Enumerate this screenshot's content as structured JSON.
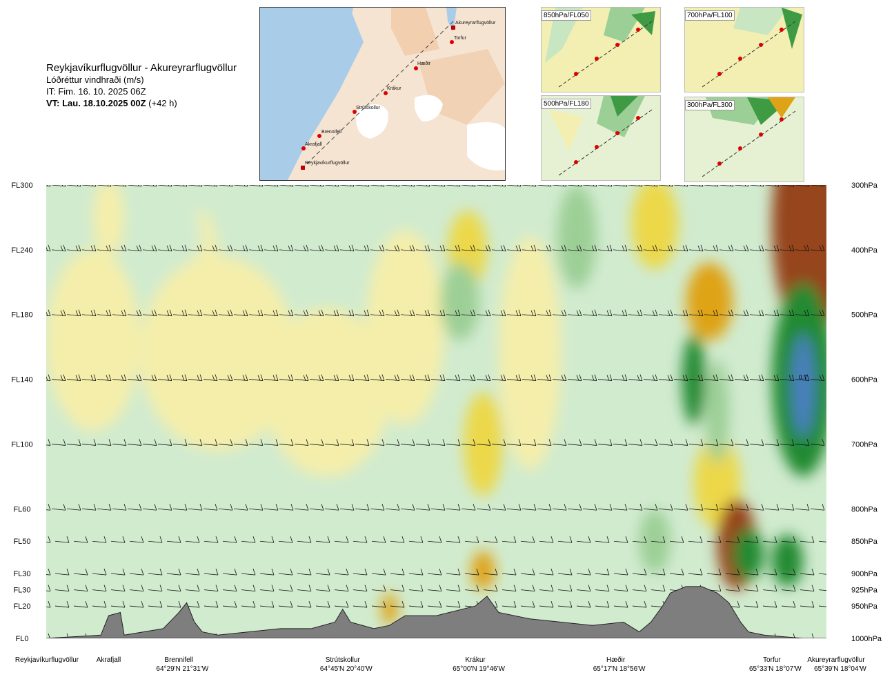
{
  "header": {
    "route": "Reykjavíkurflugvöllur - Akureyrarflugvöllur",
    "variable": "Lóðréttur vindhraði (m/s)",
    "issue_time": "IT: Fim. 16. 10. 2025 06Z",
    "valid_time": "VT: Lau. 18.10.2025 00Z",
    "lead_time": "(+42 h)"
  },
  "route_map": {
    "waypoints": [
      "Akureyrarflugvöllur",
      "Torfur",
      "Hæðir",
      "Krákur",
      "Strútskollur",
      "Brennifell",
      "Akrafjall",
      "Reykjavíkurflugvöllur"
    ]
  },
  "thumbnails": [
    {
      "label": "850hPa/FL050"
    },
    {
      "label": "700hPa/FL100"
    },
    {
      "label": "500hPa/FL180"
    },
    {
      "label": "300hPa/FL300"
    }
  ],
  "colors": {
    "downdraft_weak": "#f5eeaa",
    "downdraft_mod": "#ecd84a",
    "downdraft_strong": "#dfa318",
    "downdraft_very_strong": "#c96a10",
    "downdraft_extreme": "#96441a",
    "updraft_weak": "#d1ebcf",
    "updraft_mod": "#9ccf96",
    "updraft_strong": "#58b058",
    "updraft_very_strong": "#218a31",
    "updraft_extreme": "#4a7fbf",
    "terrain": "#7e7e7e"
  },
  "chart_data": {
    "type": "heatmap",
    "title": "Lóðréttur vindhraði (m/s)",
    "x_waypoints": [
      {
        "name": "Reykjavíkurflugvöllur",
        "coord": "",
        "pos": 0.0
      },
      {
        "name": "Akrafjall",
        "coord": "",
        "pos": 0.08
      },
      {
        "name": "Brennifell",
        "coord": "64°29'N 21°31'W",
        "pos": 0.17
      },
      {
        "name": "Strútskollur",
        "coord": "64°45'N 20°40'W",
        "pos": 0.38
      },
      {
        "name": "Krákur",
        "coord": "65°00'N 19°46'W",
        "pos": 0.55
      },
      {
        "name": "Hæðir",
        "coord": "65°17'N 18°56'W",
        "pos": 0.73
      },
      {
        "name": "Torfur",
        "coord": "65°33'N 18°07'W",
        "pos": 0.93
      },
      {
        "name": "Akureyrarflugvöllur",
        "coord": "65°39'N 18°04'W",
        "pos": 1.0
      }
    ],
    "flight_levels": [
      {
        "fl": "FL300",
        "hpa": "300hPa",
        "p": 300
      },
      {
        "fl": "FL240",
        "hpa": "400hPa",
        "p": 400
      },
      {
        "fl": "FL180",
        "hpa": "500hPa",
        "p": 500
      },
      {
        "fl": "FL140",
        "hpa": "600hPa",
        "p": 600
      },
      {
        "fl": "FL100",
        "hpa": "700hPa",
        "p": 700
      },
      {
        "fl": "FL60",
        "hpa": "800hPa",
        "p": 800
      },
      {
        "fl": "FL50",
        "hpa": "850hPa",
        "p": 850
      },
      {
        "fl": "FL30",
        "hpa": "900hPa",
        "p": 900
      },
      {
        "fl": "FL30",
        "hpa": "925hPa",
        "p": 925
      },
      {
        "fl": "FL20",
        "hpa": "950hPa",
        "p": 950
      },
      {
        "fl": "FL0",
        "hpa": "1000hPa",
        "p": 1000
      }
    ],
    "y_range_hpa": [
      300,
      1000
    ],
    "annotations": [
      {
        "text": "0.7",
        "pos": 0.97,
        "p": 600
      }
    ],
    "terrain_profile": [
      [
        0.0,
        1000
      ],
      [
        0.07,
        995
      ],
      [
        0.08,
        965
      ],
      [
        0.095,
        960
      ],
      [
        0.1,
        995
      ],
      [
        0.15,
        985
      ],
      [
        0.17,
        960
      ],
      [
        0.18,
        945
      ],
      [
        0.19,
        975
      ],
      [
        0.2,
        990
      ],
      [
        0.22,
        995
      ],
      [
        0.3,
        985
      ],
      [
        0.34,
        985
      ],
      [
        0.37,
        975
      ],
      [
        0.38,
        955
      ],
      [
        0.39,
        975
      ],
      [
        0.42,
        985
      ],
      [
        0.44,
        980
      ],
      [
        0.46,
        965
      ],
      [
        0.5,
        965
      ],
      [
        0.55,
        950
      ],
      [
        0.565,
        935
      ],
      [
        0.58,
        960
      ],
      [
        0.62,
        970
      ],
      [
        0.66,
        975
      ],
      [
        0.7,
        980
      ],
      [
        0.74,
        975
      ],
      [
        0.76,
        990
      ],
      [
        0.775,
        975
      ],
      [
        0.79,
        950
      ],
      [
        0.8,
        930
      ],
      [
        0.82,
        920
      ],
      [
        0.84,
        920
      ],
      [
        0.86,
        930
      ],
      [
        0.875,
        945
      ],
      [
        0.89,
        975
      ],
      [
        0.9,
        990
      ],
      [
        0.92,
        995
      ],
      [
        0.95,
        998
      ],
      [
        0.97,
        1000
      ],
      [
        1.0,
        1000
      ]
    ],
    "fields": [
      {
        "x": 0.78,
        "p": 360,
        "w": 0.03,
        "h": 70,
        "cls": 2
      },
      {
        "x": 0.54,
        "p": 400,
        "w": 0.025,
        "h": 60,
        "cls": 2
      },
      {
        "x": 0.85,
        "p": 480,
        "w": 0.03,
        "h": 60,
        "cls": 3
      },
      {
        "x": 0.86,
        "p": 760,
        "w": 0.03,
        "h": 70,
        "cls": 2
      },
      {
        "x": 0.56,
        "p": 700,
        "w": 0.025,
        "h": 80,
        "cls": 2
      },
      {
        "x": 0.98,
        "p": 360,
        "w": 0.05,
        "h": 180,
        "cls": 4
      },
      {
        "x": 0.885,
        "p": 855,
        "w": 0.025,
        "h": 70,
        "cls": 4
      },
      {
        "x": 0.44,
        "p": 955,
        "w": 0.01,
        "h": 25,
        "cls": 3
      },
      {
        "x": 0.56,
        "p": 895,
        "w": 0.015,
        "h": 30,
        "cls": 3
      },
      {
        "x": 0.97,
        "p": 600,
        "w": 0.04,
        "h": 150,
        "cls": -3
      },
      {
        "x": 0.97,
        "p": 610,
        "w": 0.015,
        "h": 80,
        "cls": -4
      },
      {
        "x": 0.53,
        "p": 480,
        "w": 0.025,
        "h": 60,
        "cls": -2
      },
      {
        "x": 0.68,
        "p": 380,
        "w": 0.025,
        "h": 80,
        "cls": -2
      },
      {
        "x": 0.83,
        "p": 600,
        "w": 0.015,
        "h": 70,
        "cls": -3
      },
      {
        "x": 0.86,
        "p": 650,
        "w": 0.015,
        "h": 80,
        "cls": -2
      },
      {
        "x": 0.78,
        "p": 850,
        "w": 0.02,
        "h": 50,
        "cls": -2
      },
      {
        "x": 0.9,
        "p": 870,
        "w": 0.02,
        "h": 40,
        "cls": -3
      },
      {
        "x": 0.95,
        "p": 880,
        "w": 0.02,
        "h": 40,
        "cls": -3
      },
      {
        "x": 0.18,
        "p": 380,
        "w": 0.02,
        "h": 40,
        "cls": -1
      }
    ]
  }
}
